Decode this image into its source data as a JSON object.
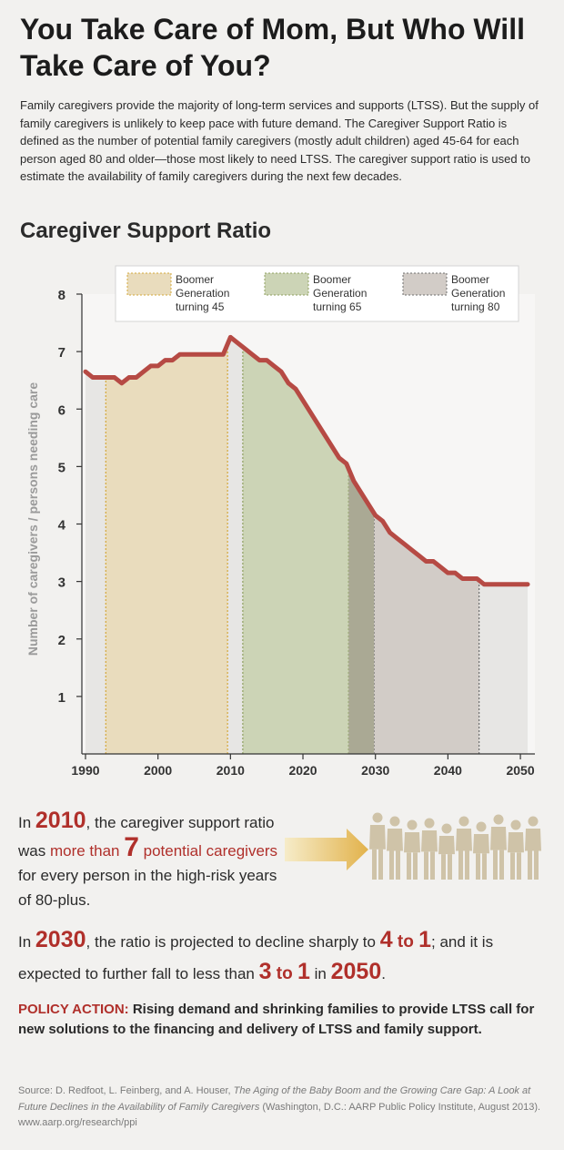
{
  "title": "You Take Care of Mom, But Who Will Take Care of You?",
  "intro": "Family caregivers provide the majority of long-term services and supports (LTSS). But the supply of family caregivers is unlikely to keep pace with future demand. The Caregiver Support Ratio is defined as the number of potential family caregivers (mostly adult children) aged 45-64 for each person aged 80 and older—those most likely to need LTSS. The caregiver support ratio is used to estimate the availability of family caregivers during the next few decades.",
  "chart_title": "Caregiver Support Ratio",
  "chart_data": {
    "type": "area",
    "title": "Caregiver Support Ratio",
    "xlabel": "",
    "ylabel": "Number of caregivers / persons needing care",
    "xlim": [
      1989.5,
      2052
    ],
    "ylim": [
      0,
      8
    ],
    "x_ticks": [
      1990,
      2000,
      2010,
      2020,
      2030,
      2040,
      2050
    ],
    "y_ticks": [
      1,
      2,
      3,
      4,
      5,
      6,
      7,
      8
    ],
    "series": [
      {
        "name": "Caregiver support ratio",
        "x": [
          1990,
          1991,
          1992,
          1993,
          1994,
          1995,
          1996,
          1997,
          1998,
          1999,
          2000,
          2001,
          2002,
          2003,
          2004,
          2005,
          2006,
          2007,
          2008,
          2009,
          2010,
          2011,
          2012,
          2013,
          2014,
          2015,
          2016,
          2017,
          2018,
          2019,
          2020,
          2021,
          2022,
          2023,
          2024,
          2025,
          2026,
          2027,
          2028,
          2029,
          2030,
          2031,
          2032,
          2033,
          2034,
          2035,
          2036,
          2037,
          2038,
          2039,
          2040,
          2041,
          2042,
          2043,
          2044,
          2045,
          2046,
          2047,
          2048,
          2049,
          2050,
          2051
        ],
        "values": [
          6.65,
          6.55,
          6.55,
          6.55,
          6.55,
          6.45,
          6.55,
          6.55,
          6.65,
          6.75,
          6.75,
          6.85,
          6.85,
          6.95,
          6.95,
          6.95,
          6.95,
          6.95,
          6.95,
          6.95,
          7.25,
          7.15,
          7.05,
          6.95,
          6.85,
          6.85,
          6.75,
          6.65,
          6.45,
          6.35,
          6.15,
          5.95,
          5.75,
          5.55,
          5.35,
          5.15,
          5.05,
          4.75,
          4.55,
          4.35,
          4.15,
          4.05,
          3.85,
          3.75,
          3.65,
          3.55,
          3.45,
          3.35,
          3.35,
          3.25,
          3.15,
          3.15,
          3.05,
          3.05,
          3.05,
          2.95,
          2.95,
          2.95,
          2.95,
          2.95,
          2.95,
          2.95
        ]
      }
    ],
    "bands": [
      {
        "label_lines": [
          "Boomer",
          "Generation",
          "turning 45"
        ],
        "from": 1992.8,
        "to": 2009.6,
        "fill": "#e9dcbd",
        "edge": "#d4a83a"
      },
      {
        "label_lines": [
          "Boomer",
          "Generation",
          "turning 65"
        ],
        "from": 2011.7,
        "to": 2026.3,
        "fill": "#ccd4b6",
        "edge": "#8fa15f"
      },
      {
        "label_lines": [
          "Boomer",
          "Generation",
          "turning 80"
        ],
        "from": 2029.8,
        "to": 2044.3,
        "fill": "#d2ccc7",
        "edge": "#6e6e6e"
      }
    ],
    "overlap_band": {
      "from": 2026.3,
      "to": 2029.8,
      "fill": "#aaa994"
    },
    "legend": "top-right",
    "grid": false
  },
  "colors": {
    "line": "#b64a44",
    "base_fill": "#e7e6e4",
    "plot_bg": "#f7f6f5",
    "axis": "#333333",
    "tick_text": "#333333",
    "ylabel": "#9a9a9a",
    "accent_red": "#b0302b",
    "arrow_start": "#f6ecc9",
    "arrow_end": "#e2b24b",
    "people": "#cfc3a8"
  },
  "statement1": {
    "prefix": "In ",
    "year": "2010",
    "part2": ", the caregiver support ratio was ",
    "red_pre": "more than ",
    "number": "7",
    "red_post": " potential caregivers",
    "suffix": " for every person in the high-risk years of 80-plus."
  },
  "statement2": {
    "prefix": "In ",
    "year": "2030",
    "part2": ", the ratio is projected to decline sharply to ",
    "ratio1_a": "4",
    "ratio1_to": " to ",
    "ratio1_b": "1",
    "part3": "; and it is expected to further fall to less than ",
    "ratio2_a": "3",
    "ratio2_to": " to ",
    "ratio2_b": "1",
    "part4": " in ",
    "year2": "2050",
    "end": "."
  },
  "policy": {
    "label": "POLICY ACTION:",
    "text": " Rising demand and shrinking families to provide LTSS call for new solutions to the financing and delivery of LTSS and family support."
  },
  "source": {
    "lead": "Source:  D. Redfoot, L. Feinberg, and A. Houser, ",
    "title": "The Aging of the Baby Boom and the Growing Care Gap: A Look at Future Declines in the Availability of Family Caregivers",
    "tail": " (Washington, D.C.:  AARP Public Policy Institute, August 2013). www.aarp.org/research/ppi"
  },
  "icons": {
    "arrow": "right-arrow-icon",
    "people": "caregivers-group-icon"
  }
}
